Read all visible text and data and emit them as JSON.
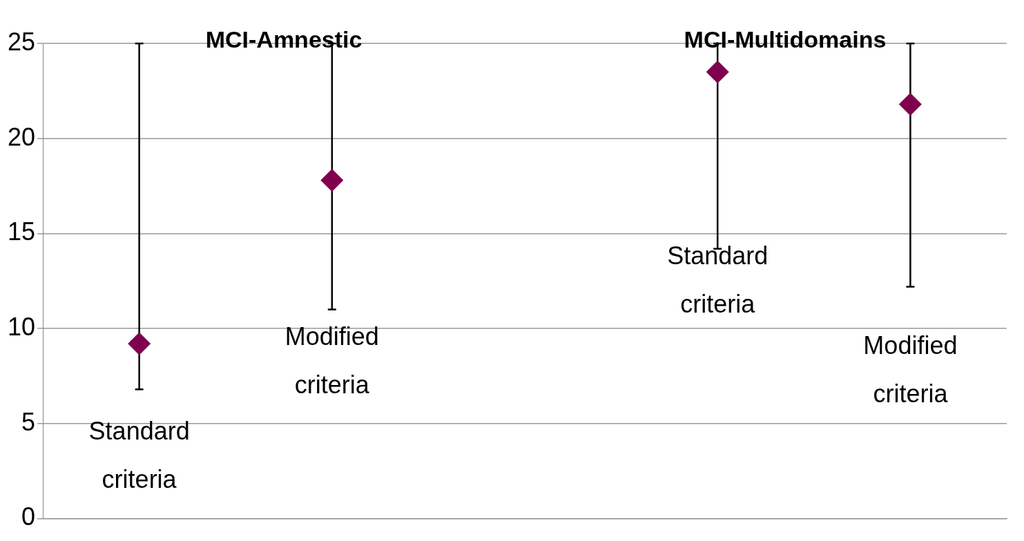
{
  "chart_data": {
    "type": "scatter",
    "categories": [
      null,
      null,
      null,
      null,
      null
    ],
    "values": [
      9.2,
      17.8,
      null,
      23.5,
      21.8
    ],
    "errors": [
      [
        6.8,
        25
      ],
      [
        11.0,
        25
      ],
      null,
      [
        14.2,
        25
      ],
      [
        12.2,
        25
      ]
    ],
    "color": "#800050",
    "marker": "diamond",
    "ylim": [
      0,
      25
    ],
    "yticks": [
      0,
      5,
      10,
      15,
      20,
      25
    ],
    "grid": "y",
    "legend": false,
    "tick_labels": "y",
    "annotations": [
      "MCI-Amnestic",
      "MCI-Multidomains",
      "Standard\ncriteria",
      "Modified\ncriteria",
      "Standard\ncriteria",
      "Modified\ncriteria"
    ]
  }
}
